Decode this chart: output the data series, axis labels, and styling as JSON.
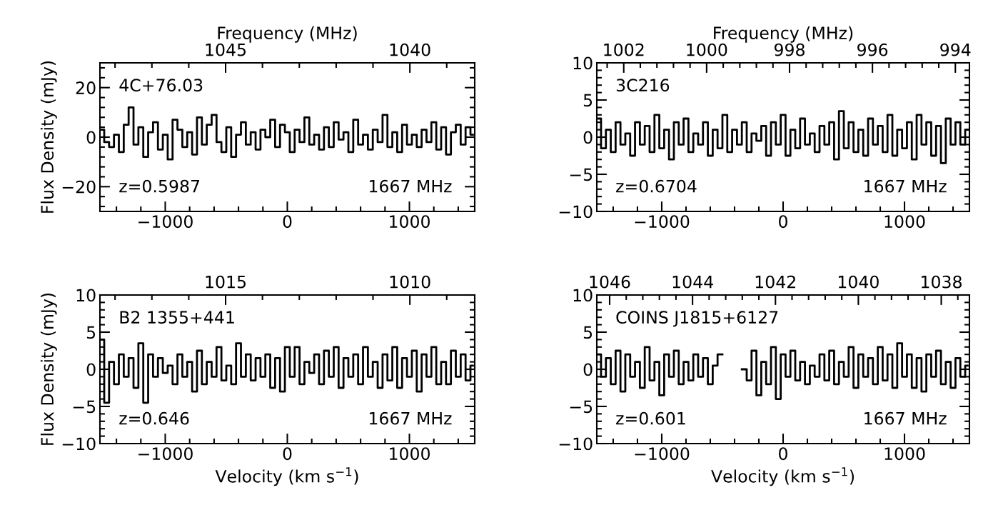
{
  "chart_data": [
    {
      "type": "step",
      "xlim": [
        -1535,
        1535
      ],
      "xticks": [
        -1000,
        0,
        1000
      ],
      "ylim": [
        -30,
        30
      ],
      "yticks": [
        -20,
        0,
        20
      ],
      "x2lim": [
        1048.41,
        1038.24
      ],
      "x2ticks": [
        1045,
        1040
      ],
      "x2label": "Frequency (MHz)",
      "ylabel": "Flux Density (mJy)",
      "annotations": [
        "4C+76.03",
        "z=0.5987",
        "1667 MHz"
      ],
      "x": [
        -1520,
        -1480,
        -1440,
        -1400,
        -1360,
        -1320,
        -1280,
        -1240,
        -1200,
        -1160,
        -1120,
        -1080,
        -1040,
        -1000,
        -960,
        -920,
        -880,
        -840,
        -800,
        -760,
        -720,
        -680,
        -640,
        -600,
        -560,
        -520,
        -480,
        -440,
        -400,
        -360,
        -320,
        -280,
        -240,
        -200,
        -160,
        -120,
        -80,
        -40,
        0,
        40,
        80,
        120,
        160,
        200,
        240,
        280,
        320,
        360,
        400,
        440,
        480,
        520,
        560,
        600,
        640,
        680,
        720,
        760,
        800,
        840,
        880,
        920,
        960,
        1000,
        1040,
        1080,
        1120,
        1160,
        1200,
        1240,
        1280,
        1320,
        1360,
        1400,
        1440,
        1480,
        1520
      ],
      "series": [
        {
          "color": "#000000",
          "values": [
            3,
            -2,
            -4,
            1,
            -6,
            5,
            12,
            -3,
            4,
            -8,
            2,
            6,
            -5,
            1,
            -9,
            7,
            3,
            -4,
            2,
            -7,
            8,
            -3,
            5,
            9,
            -2,
            -6,
            4,
            -8,
            1,
            6,
            -3,
            2,
            -5,
            3,
            0,
            7,
            -4,
            5,
            2,
            -6,
            3,
            -2,
            8,
            -3,
            1,
            -5,
            4,
            -4,
            6,
            -1,
            2,
            -6,
            7,
            -3,
            1,
            -5,
            3,
            -2,
            9,
            -4,
            2,
            -6,
            5,
            -3,
            1,
            -4,
            3,
            -2,
            6,
            -5,
            4,
            -7,
            2,
            5,
            -3,
            4,
            1
          ]
        }
      ]
    },
    {
      "type": "step",
      "xlim": [
        -1535,
        1535
      ],
      "xticks": [
        -1000,
        0,
        1000
      ],
      "ylim": [
        -10,
        10
      ],
      "yticks": [
        -10,
        -5,
        0,
        5,
        10
      ],
      "x2lim": [
        1002.65,
        993.66
      ],
      "x2ticks": [
        1002,
        1000,
        998,
        996,
        994
      ],
      "x2label": "Frequency (MHz)",
      "annotations": [
        "3C216",
        "z=0.6704",
        "1667 MHz"
      ],
      "x": [
        -1520,
        -1480,
        -1440,
        -1400,
        -1360,
        -1320,
        -1280,
        -1240,
        -1200,
        -1160,
        -1120,
        -1080,
        -1040,
        -1000,
        -960,
        -920,
        -880,
        -840,
        -800,
        -760,
        -720,
        -680,
        -640,
        -600,
        -560,
        -520,
        -480,
        -440,
        -400,
        -360,
        -320,
        -280,
        -240,
        -200,
        -160,
        -120,
        -80,
        -40,
        0,
        40,
        80,
        120,
        160,
        200,
        240,
        280,
        320,
        360,
        400,
        440,
        480,
        520,
        560,
        600,
        640,
        680,
        720,
        760,
        800,
        840,
        880,
        920,
        960,
        1000,
        1040,
        1080,
        1120,
        1160,
        1200,
        1240,
        1280,
        1320,
        1360,
        1400,
        1440,
        1480,
        1520
      ],
      "series": [
        {
          "color": "#000000",
          "values": [
            2.5,
            -1.5,
            1,
            -2,
            2,
            -1,
            0.5,
            -2.5,
            2,
            -1,
            1.5,
            -2,
            3,
            -1.5,
            1,
            -3,
            2,
            -1,
            2.5,
            -2,
            0.5,
            -1,
            2,
            -2.5,
            1,
            -1.5,
            3,
            -2,
            1,
            -1,
            2,
            -2,
            0.5,
            -0.5,
            1.5,
            -2.5,
            2,
            -1,
            3,
            -2.5,
            1,
            -1.5,
            2.5,
            -1,
            0.5,
            -2,
            1.5,
            -1,
            2,
            -3,
            3.5,
            -1.5,
            2,
            -2,
            1,
            -2.5,
            2.5,
            -1,
            1.5,
            -2,
            3,
            -2.5,
            1,
            -1.5,
            2,
            -3,
            3,
            -1,
            2,
            -2.5,
            1.5,
            -3.5,
            2.5,
            -1,
            2,
            -1,
            1
          ]
        }
      ]
    },
    {
      "type": "step",
      "xlim": [
        -1535,
        1535
      ],
      "xticks": [
        -1000,
        0,
        1000
      ],
      "ylim": [
        -10,
        10
      ],
      "yticks": [
        -10,
        -5,
        0,
        5,
        10
      ],
      "x2lim": [
        1018.41,
        1008.24
      ],
      "x2ticks": [
        1015,
        1010
      ],
      "xlabel": "Velocity (km s$^{−1}$)",
      "ylabel": "Flux Density (mJy)",
      "annotations": [
        "B2 1355+441",
        "z=0.646",
        "1667 MHz"
      ],
      "x": [
        -1520,
        -1480,
        -1440,
        -1400,
        -1360,
        -1320,
        -1280,
        -1240,
        -1200,
        -1160,
        -1120,
        -1080,
        -1040,
        -1000,
        -960,
        -920,
        -880,
        -840,
        -800,
        -760,
        -720,
        -680,
        -640,
        -600,
        -560,
        -520,
        -480,
        -440,
        -400,
        -360,
        -320,
        -280,
        -240,
        -200,
        -160,
        -120,
        -80,
        -40,
        0,
        40,
        80,
        120,
        160,
        200,
        240,
        280,
        320,
        360,
        400,
        440,
        480,
        520,
        560,
        600,
        640,
        680,
        720,
        760,
        800,
        840,
        880,
        920,
        960,
        1000,
        1040,
        1080,
        1120,
        1160,
        1200,
        1240,
        1280,
        1320,
        1360,
        1400,
        1440,
        1480,
        1520
      ],
      "series": [
        {
          "color": "#000000",
          "values": [
            4,
            -4.5,
            1,
            -2,
            2,
            -1,
            1.5,
            -2.5,
            3.5,
            -4.5,
            2,
            -1,
            1.5,
            -0.5,
            0.5,
            -2,
            2,
            -1,
            1,
            -3,
            2.5,
            -2,
            1,
            -1,
            3,
            -1.5,
            0.5,
            -2,
            3.5,
            -1,
            2,
            -1.5,
            1.5,
            -1,
            2,
            -2.5,
            1.5,
            -3,
            3,
            -1,
            3,
            -2,
            1,
            -0.5,
            2,
            -2,
            2.5,
            -1,
            3,
            -2.5,
            1.5,
            -1,
            2,
            -2,
            3,
            -1,
            1,
            -2.5,
            2,
            -1.5,
            3,
            -2.5,
            1.5,
            -1,
            2.5,
            -3,
            2,
            -1,
            3,
            -2,
            1,
            -2,
            2.5,
            -1,
            2,
            -1.5,
            0.5
          ]
        }
      ]
    },
    {
      "type": "step",
      "xlim": [
        -1535,
        1535
      ],
      "xticks": [
        -1000,
        0,
        1000
      ],
      "ylim": [
        -10,
        10
      ],
      "yticks": [
        -10,
        -5,
        0,
        5,
        10
      ],
      "x2lim": [
        1046.31,
        1037.32
      ],
      "x2ticks": [
        1046,
        1044,
        1042,
        1040,
        1038
      ],
      "xlabel": "Velocity (km s$^{−1}$)",
      "annotations": [
        "COINS J1815+6127",
        "z=0.601",
        "1667 MHz"
      ],
      "x": [
        -1520,
        -1480,
        -1440,
        -1400,
        -1360,
        -1320,
        -1280,
        -1240,
        -1200,
        -1160,
        -1120,
        -1080,
        -1040,
        -1000,
        -960,
        -920,
        -880,
        -840,
        -800,
        -760,
        -720,
        -680,
        -640,
        -600,
        -560,
        -520,
        -480,
        -440,
        -400,
        -360,
        -320,
        -280,
        -240,
        -200,
        -160,
        -120,
        -80,
        -40,
        0,
        40,
        80,
        120,
        160,
        200,
        240,
        280,
        320,
        360,
        400,
        440,
        480,
        520,
        560,
        600,
        640,
        680,
        720,
        760,
        800,
        840,
        880,
        920,
        960,
        1000,
        1040,
        1080,
        1120,
        1160,
        1200,
        1240,
        1280,
        1320,
        1360,
        1400,
        1440,
        1480,
        1520
      ],
      "series": [
        {
          "color": "#000000",
          "values": [
            2,
            -1,
            1.5,
            -2,
            2.5,
            -3,
            2,
            -1,
            1,
            -2.5,
            3,
            -1.5,
            1,
            -3.5,
            2,
            -1,
            2.5,
            -2,
            1,
            -1.5,
            2,
            -1,
            1.5,
            -2,
            0.5,
            2,
            null,
            null,
            null,
            null,
            0,
            -1.5,
            2.5,
            -3.5,
            1,
            -2,
            3,
            -4,
            2,
            -1,
            2.5,
            -1.5,
            1,
            -2,
            0.5,
            -1,
            2,
            -1.5,
            2.5,
            -2,
            1,
            -1,
            3,
            -2.5,
            2,
            -1,
            1.5,
            -2,
            3,
            -1.5,
            2,
            -2.5,
            3.5,
            -1,
            2,
            -2.5,
            1.5,
            -3,
            2,
            -1,
            2.5,
            -2,
            1,
            -2.5,
            1.5,
            -1,
            0.5
          ]
        }
      ]
    }
  ]
}
